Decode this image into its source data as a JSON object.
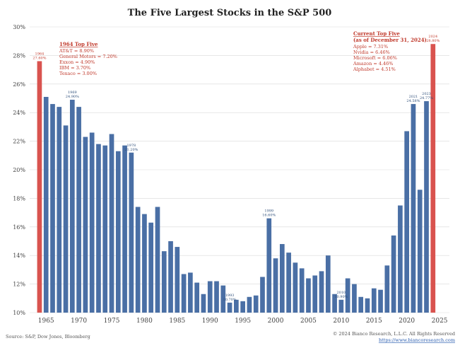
{
  "colors": {
    "bar": "#4a6fa5",
    "highlight": "#d9534f",
    "label_red": "#c0392b",
    "label_blue": "#2f4f7a"
  },
  "chart_data": {
    "type": "bar",
    "title": "The Five Largest Stocks in the S&P 500",
    "ylim": [
      10,
      30
    ],
    "yticks": [
      10,
      12,
      14,
      16,
      18,
      20,
      22,
      24,
      26,
      28,
      30
    ],
    "ytick_labels": [
      "10%",
      "12%",
      "14%",
      "16%",
      "18%",
      "20%",
      "22%",
      "24%",
      "26%",
      "28%",
      "30%"
    ],
    "xticks": [
      1965,
      1970,
      1975,
      1980,
      1985,
      1990,
      1995,
      2000,
      2005,
      2010,
      2015,
      2020,
      2025
    ],
    "grid": true,
    "x": [
      1964,
      1965,
      1966,
      1967,
      1968,
      1969,
      1970,
      1971,
      1972,
      1973,
      1974,
      1975,
      1976,
      1977,
      1978,
      1979,
      1980,
      1981,
      1982,
      1983,
      1984,
      1985,
      1986,
      1987,
      1988,
      1989,
      1990,
      1991,
      1992,
      1993,
      1994,
      1995,
      1996,
      1997,
      1998,
      1999,
      2000,
      2001,
      2002,
      2003,
      2004,
      2005,
      2006,
      2007,
      2008,
      2009,
      2010,
      2011,
      2012,
      2013,
      2014,
      2015,
      2016,
      2017,
      2018,
      2019,
      2020,
      2021,
      2022,
      2023,
      2024
    ],
    "values": [
      27.6,
      25.1,
      24.6,
      24.4,
      23.1,
      24.9,
      24.4,
      22.3,
      22.6,
      21.8,
      21.7,
      22.5,
      21.3,
      21.7,
      21.2,
      17.4,
      16.9,
      16.3,
      17.4,
      14.3,
      15.0,
      14.6,
      12.7,
      12.8,
      12.1,
      11.3,
      12.2,
      12.2,
      11.9,
      10.7,
      10.9,
      10.8,
      11.1,
      11.2,
      12.5,
      16.6,
      13.8,
      14.8,
      14.2,
      13.5,
      13.1,
      12.4,
      12.6,
      12.9,
      14.0,
      11.3,
      10.9,
      12.4,
      12.0,
      11.1,
      11.0,
      11.7,
      11.6,
      13.3,
      15.4,
      17.5,
      22.7,
      24.6,
      18.6,
      24.8,
      28.8
    ],
    "highlight_years": [
      1964,
      2024
    ],
    "data_labels": [
      {
        "year": 1964,
        "line1": "1964",
        "line2": "27.60%",
        "color": "red"
      },
      {
        "year": 1969,
        "line1": "1969",
        "line2": "24.90%",
        "color": "blue"
      },
      {
        "year": 1978,
        "line1": "1978",
        "line2": "21.20%",
        "color": "blue"
      },
      {
        "year": 1993,
        "line1": "1993",
        "line2": "10.70%",
        "color": "blue"
      },
      {
        "year": 1999,
        "line1": "1999",
        "line2": "16.60%",
        "color": "blue"
      },
      {
        "year": 2010,
        "line1": "2010",
        "line2": "10.90%",
        "color": "blue"
      },
      {
        "year": 2021,
        "line1": "2021",
        "line2": "24.58%",
        "color": "blue"
      },
      {
        "year": 2023,
        "line1": "2023",
        "line2": "24.77%",
        "color": "blue"
      },
      {
        "year": 2024,
        "line1": "2024",
        "line2": "28.80%",
        "color": "red"
      }
    ],
    "annotations": {
      "left": {
        "heading": "1964 Top Five",
        "lines": [
          "AT&T = 8.90%",
          "General Motors = 7.20%",
          "Exxon = 4.90%",
          "IBM = 3.70%",
          "Texaco = 3.00%"
        ]
      },
      "right": {
        "heading": "Current Top Five",
        "subheading": "(as of December 31, 2024)",
        "lines": [
          "Apple = 7.31%",
          "Nvidia = 6.46%",
          "Microsoft = 6.06%",
          "Amazon = 4.46%",
          "Alphabet = 4.51%"
        ]
      }
    }
  },
  "footer": {
    "source": "Source: S&P, Dow Jones, Bloomberg",
    "copyright": "© 2024 Bianco Research, L.L.C. All Rights Reserved",
    "url": "https://www.biancoresearch.com"
  }
}
